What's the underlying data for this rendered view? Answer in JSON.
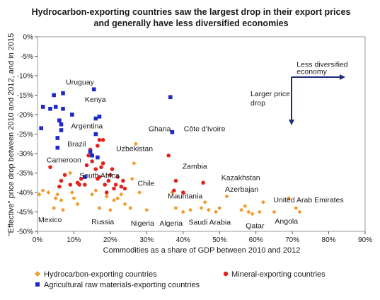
{
  "chart_data": {
    "type": "scatter",
    "title": [
      "Hydrocarbon-exporting countries saw the largest drop in their export prices",
      "and generally have less diversified economies"
    ],
    "xlabel": "Commodities as a share of GDP between 2010 and 2012",
    "ylabel": "\"Effective\" price drop between 2010 and 2012, and in 2015",
    "xlim": [
      0,
      90
    ],
    "ylim": [
      -50,
      0
    ],
    "x_ticks": [
      "0%",
      "10%",
      "20%",
      "30%",
      "40%",
      "50%",
      "60%",
      "70%",
      "80%",
      "90%"
    ],
    "y_ticks": [
      "0%",
      "-5%",
      "-10%",
      "-15%",
      "-20%",
      "-25%",
      "-30%",
      "-35%",
      "-40%",
      "-45%",
      "-50%"
    ],
    "grid": false,
    "legend_position": "bottom",
    "series": [
      {
        "name": "Hydrocarbon-exporting countries",
        "color": "#f39a2b",
        "marker": "diamond",
        "points": [
          [
            0.5,
            -40.5
          ],
          [
            1.5,
            -39.5
          ],
          [
            3,
            -40
          ],
          [
            4.5,
            -44
          ],
          [
            5,
            -41.5
          ],
          [
            5.5,
            -40.5
          ],
          [
            6.5,
            -42
          ],
          [
            7,
            -44.5
          ],
          [
            9,
            -35
          ],
          [
            9.5,
            -40
          ],
          [
            10,
            -41.5
          ],
          [
            11,
            -43
          ],
          [
            15,
            -40.5
          ],
          [
            16,
            -39.5
          ],
          [
            17,
            -44
          ],
          [
            19,
            -41
          ],
          [
            20,
            -44.5
          ],
          [
            21,
            -42
          ],
          [
            22,
            -41.5
          ],
          [
            23,
            -40.5
          ],
          [
            24,
            -43
          ],
          [
            25.5,
            -44
          ],
          [
            26,
            -36.5
          ],
          [
            26.5,
            -32.5
          ],
          [
            27,
            -27.5
          ],
          [
            28,
            -40
          ],
          [
            30,
            -44.5
          ],
          [
            37,
            -40
          ],
          [
            38,
            -44
          ],
          [
            40,
            -45
          ],
          [
            42,
            -44.5
          ],
          [
            45,
            -44
          ],
          [
            46,
            -42.5
          ],
          [
            47,
            -44.5
          ],
          [
            49,
            -45
          ],
          [
            50,
            -44
          ],
          [
            52,
            -41
          ],
          [
            56,
            -44.5
          ],
          [
            57,
            -43.5
          ],
          [
            58,
            -45
          ],
          [
            59,
            -45.5
          ],
          [
            61,
            -45
          ],
          [
            62,
            -42.5
          ],
          [
            65,
            -45
          ],
          [
            69,
            -41.5
          ],
          [
            71,
            -44
          ],
          [
            72,
            -45
          ]
        ]
      },
      {
        "name": "Mineral-exporting countries",
        "color": "#e3231b",
        "marker": "circle",
        "points": [
          [
            3.5,
            -33.5
          ],
          [
            6,
            -38.5
          ],
          [
            6.5,
            -37
          ],
          [
            7.5,
            -35.5
          ],
          [
            9,
            -38
          ],
          [
            11,
            -37.5
          ],
          [
            11.5,
            -38
          ],
          [
            12,
            -36.5
          ],
          [
            13,
            -38
          ],
          [
            13.5,
            -33
          ],
          [
            14,
            -30.5
          ],
          [
            14.5,
            -29
          ],
          [
            15,
            -32
          ],
          [
            16,
            -34
          ],
          [
            16.5,
            -36.5
          ],
          [
            17,
            -36
          ],
          [
            17.5,
            -33.5
          ],
          [
            18,
            -32.5
          ],
          [
            18.5,
            -38
          ],
          [
            19,
            -40
          ],
          [
            19.5,
            -37
          ],
          [
            20,
            -35.5
          ],
          [
            20.5,
            -34
          ],
          [
            21,
            -39
          ],
          [
            21.5,
            -38
          ],
          [
            22,
            -36
          ],
          [
            23,
            -38.5
          ],
          [
            23.5,
            -37
          ],
          [
            24,
            -39
          ],
          [
            17,
            -26.5
          ],
          [
            18,
            -26.5
          ],
          [
            16.5,
            -28
          ],
          [
            36,
            -30.5
          ],
          [
            38,
            -37
          ],
          [
            37.5,
            -39.5
          ],
          [
            40,
            -40
          ],
          [
            45.5,
            -37.5
          ]
        ]
      },
      {
        "name": "Agricultural raw materials-exporting countries",
        "color": "#1f28c8",
        "marker": "square",
        "points": [
          [
            1,
            -23.5
          ],
          [
            1.5,
            -18
          ],
          [
            3.5,
            -18.5
          ],
          [
            4.5,
            -15
          ],
          [
            5,
            -18
          ],
          [
            5.5,
            -26
          ],
          [
            5.5,
            -28.5
          ],
          [
            6,
            -21.5
          ],
          [
            6.5,
            -22.5
          ],
          [
            6.5,
            -24
          ],
          [
            7,
            -18.5
          ],
          [
            7,
            -14.5
          ],
          [
            9.5,
            -20
          ],
          [
            13,
            -36
          ],
          [
            14.5,
            -29.5
          ],
          [
            15,
            -30.5
          ],
          [
            15.5,
            -13.5
          ],
          [
            16,
            -21
          ],
          [
            16,
            -25
          ],
          [
            16.5,
            -31
          ],
          [
            17,
            -20.5
          ],
          [
            36.5,
            -15.5
          ],
          [
            37,
            -24.5
          ]
        ]
      }
    ],
    "annotations": [
      {
        "text": "Uruguay",
        "x": 7.8,
        "y": -12.3
      },
      {
        "text": "Kenya",
        "x": 13,
        "y": -16.7
      },
      {
        "text": "Argentina",
        "x": 9.2,
        "y": -23.5
      },
      {
        "text": "Brazil",
        "x": 8.2,
        "y": -28.2
      },
      {
        "text": "Cameroon",
        "x": 2.5,
        "y": -32.3
      },
      {
        "text": "South Africa",
        "x": 11.5,
        "y": -36.3
      },
      {
        "text": "Mexico",
        "x": 0.2,
        "y": -47.6
      },
      {
        "text": "Russia",
        "x": 14.8,
        "y": -48.2
      },
      {
        "text": "Nigeria",
        "x": 25.6,
        "y": -48.5
      },
      {
        "text": "Algeria",
        "x": 33.5,
        "y": -48.5
      },
      {
        "text": "Saudi Arabia",
        "x": 41.5,
        "y": -48.3
      },
      {
        "text": "Qatar",
        "x": 57.2,
        "y": -49.2
      },
      {
        "text": "Angola",
        "x": 65.2,
        "y": -48
      },
      {
        "text": "United Arab Emirates",
        "x": 64.8,
        "y": -42.5
      },
      {
        "text": "Azerbajan",
        "x": 51.5,
        "y": -39.8
      },
      {
        "text": "Kazakhstan",
        "x": 50.5,
        "y": -36.8
      },
      {
        "text": "Mauritania",
        "x": 35.8,
        "y": -41.5
      },
      {
        "text": "Zambia",
        "x": 39.8,
        "y": -33.9
      },
      {
        "text": "Chile",
        "x": 27.5,
        "y": -38.3
      },
      {
        "text": "Uzbekistan",
        "x": 21.6,
        "y": -29.4
      },
      {
        "text": "Ghana",
        "x": 30.5,
        "y": -24.3
      },
      {
        "text": "Côte d'Ivoire",
        "x": 40.2,
        "y": -24.3
      },
      {
        "text": "Larger price",
        "x": 58.5,
        "y": -15.3
      },
      {
        "text": "drop",
        "x": 58.5,
        "y": -17.6
      },
      {
        "text": "Less diversified",
        "x": 71.2,
        "y": -7.7
      },
      {
        "text": "economy",
        "x": 71.2,
        "y": -9.5
      }
    ]
  }
}
